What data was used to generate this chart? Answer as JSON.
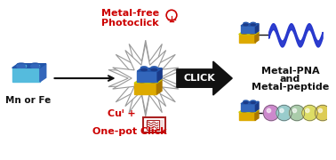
{
  "bg_color": "#ffffff",
  "text_mn_fe": "Mn or Fe",
  "text_click": "CLICK",
  "text_metal_free_1": "Metal-free",
  "text_metal_free_2": "Photoclick",
  "text_cu": "Cuᴵ +",
  "text_onepot": "One-pot Click",
  "text_pna": "Metal-PNA",
  "text_and": "and",
  "text_peptide": "Metal-peptide",
  "color_blue_lego": "#3366bb",
  "color_blue_lego_dark": "#1a3a88",
  "color_blue_lego_top": "#2255aa",
  "color_yellow_lego": "#ddaa00",
  "color_yellow_lego_dark": "#aa7700",
  "color_yellow_lego_top": "#cccc00",
  "color_cyan_lego": "#55bbdd",
  "color_cyan_lego_dark": "#3388aa",
  "color_red_text": "#cc0000",
  "color_black": "#111111",
  "color_star_fill": "#ffffff",
  "color_star_edge": "#999999",
  "color_helix": "#2233cc",
  "color_microwave": "#aa2222",
  "bead_colors": [
    "#cc88cc",
    "#99cccc",
    "#aaccaa",
    "#dddd66",
    "#ddcc55",
    "#dd9944",
    "#dd5544",
    "#cc4444"
  ],
  "figsize": [
    3.78,
    1.8
  ],
  "dpi": 100
}
